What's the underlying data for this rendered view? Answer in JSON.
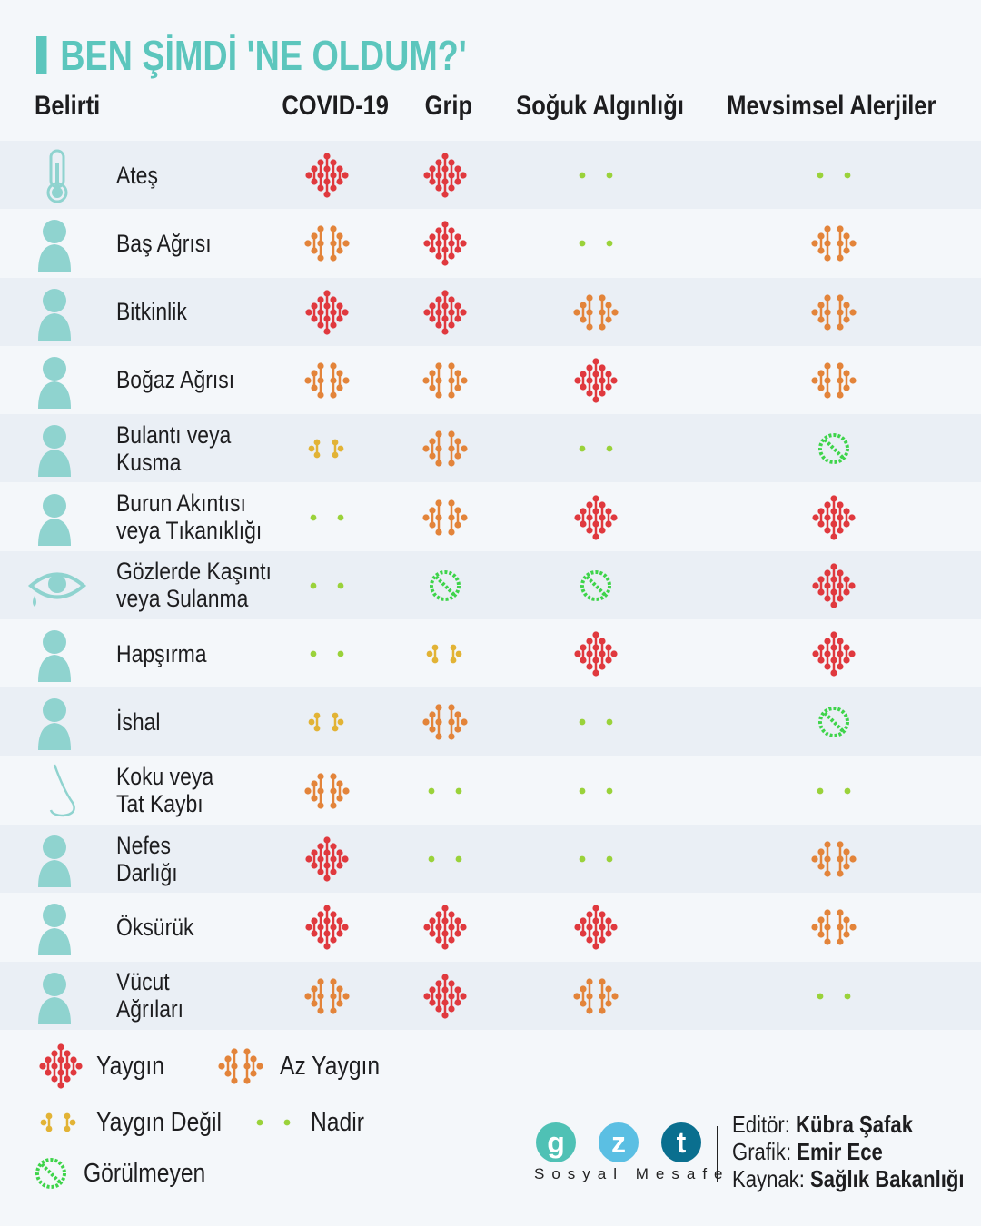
{
  "title": "BEN ŞİMDİ 'NE OLDUM?'",
  "headers": {
    "symptom": "Belirti",
    "columns": [
      "COVID-19",
      "Grip",
      "Soğuk Algınlığı",
      "Mevsimsel Alerjiler"
    ]
  },
  "levels": {
    "Y": {
      "label": "Yaygın",
      "color": "#e0393e"
    },
    "A": {
      "label": "Az Yaygın",
      "color": "#e3843a"
    },
    "D": {
      "label": "Yaygın Değil",
      "color": "#e2b335"
    },
    "N": {
      "label": "Nadir",
      "color": "#9ad23a"
    },
    "G": {
      "label": "Görülmeyen",
      "color": "#3ed44a"
    }
  },
  "rows": [
    {
      "label": "Ateş",
      "icon": "thermometer-icon",
      "values": [
        "Y",
        "Y",
        "N",
        "N"
      ]
    },
    {
      "label": "Baş Ağrısı",
      "icon": "headache-icon",
      "values": [
        "A",
        "Y",
        "N",
        "A"
      ]
    },
    {
      "label": "Bitkinlik",
      "icon": "fatigue-icon",
      "values": [
        "Y",
        "Y",
        "A",
        "A"
      ]
    },
    {
      "label": "Boğaz Ağrısı",
      "icon": "sore-throat-icon",
      "values": [
        "A",
        "A",
        "Y",
        "A"
      ]
    },
    {
      "label": "Bulantı veya\nKusma",
      "icon": "nausea-icon",
      "values": [
        "D",
        "A",
        "N",
        "G"
      ]
    },
    {
      "label": "Burun Akıntısı\nveya Tıkanıklığı",
      "icon": "runny-nose-icon",
      "values": [
        "N",
        "A",
        "Y",
        "Y"
      ]
    },
    {
      "label": "Gözlerde Kaşıntı\nveya Sulanma",
      "icon": "eye-icon",
      "values": [
        "N",
        "G",
        "G",
        "Y"
      ]
    },
    {
      "label": "Hapşırma",
      "icon": "sneeze-icon",
      "values": [
        "N",
        "D",
        "Y",
        "Y"
      ]
    },
    {
      "label": "İshal",
      "icon": "diarrhea-icon",
      "values": [
        "D",
        "A",
        "N",
        "G"
      ]
    },
    {
      "label": "Koku veya\nTat Kaybı",
      "icon": "nose-icon",
      "values": [
        "A",
        "N",
        "N",
        "N"
      ]
    },
    {
      "label": "Nefes\nDarlığı",
      "icon": "shortness-of-breath-icon",
      "values": [
        "Y",
        "N",
        "N",
        "A"
      ]
    },
    {
      "label": "Öksürük",
      "icon": "cough-icon",
      "values": [
        "Y",
        "Y",
        "Y",
        "A"
      ]
    },
    {
      "label": "Vücut\nAğrıları",
      "icon": "body-ache-icon",
      "values": [
        "A",
        "Y",
        "A",
        "N"
      ]
    }
  ],
  "footer": {
    "logo_letters": [
      "g",
      "z",
      "t"
    ],
    "logo_colors": [
      "#4fc1b5",
      "#5bbfe3",
      "#0a6f8f"
    ],
    "tagline": "Sosyal Mesafe",
    "editor_label": "Editör:",
    "editor": "Kübra Şafak",
    "graphic_label": "Grafik:",
    "graphic": "Emir Ece",
    "source_label": "Kaynak:",
    "source": "Sağlık Bakanlığı"
  }
}
